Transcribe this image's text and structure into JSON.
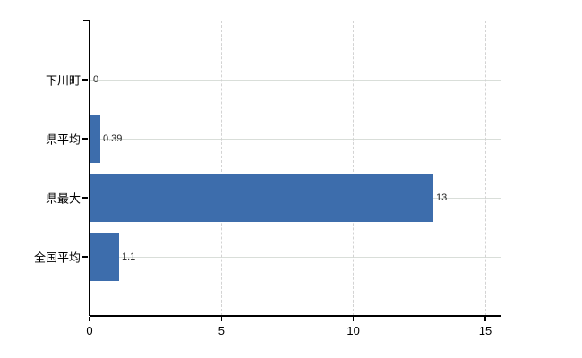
{
  "chart_data": {
    "type": "bar",
    "orientation": "horizontal",
    "title": "",
    "xlabel": "",
    "ylabel": "",
    "categories": [
      "下川町",
      "県平均",
      "県最大",
      "全国平均"
    ],
    "values": [
      0,
      0.39,
      13,
      1.1
    ],
    "value_labels": [
      "0",
      "0.39",
      "13",
      "1.1"
    ],
    "x_ticks": [
      0,
      5,
      10,
      15
    ],
    "x_tick_labels": [
      "0",
      "5",
      "10",
      "15"
    ],
    "xlim": [
      0,
      15
    ],
    "grid": "on",
    "legend_position": "none",
    "colors": {
      "bar": "#3d6dac",
      "horizontal_gridline": "#d9ded9",
      "vertical_gridline_dashed": "#d3d3d3",
      "axis": "#000000",
      "category_text": "#000000",
      "value_text": "#222222",
      "background": "#ffffff"
    }
  }
}
